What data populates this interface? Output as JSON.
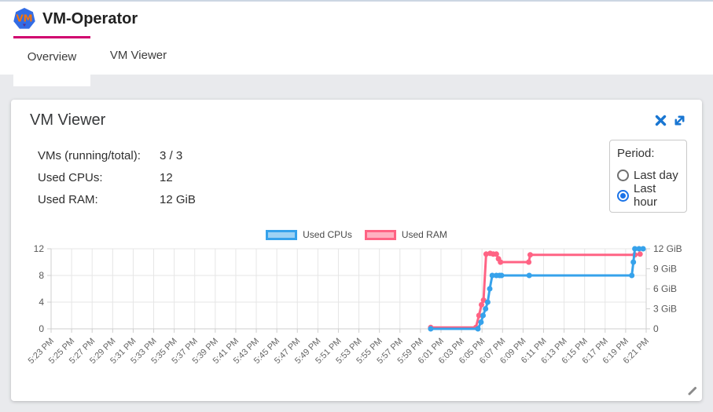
{
  "header": {
    "title": "VM-Operator",
    "logo_text": "VM"
  },
  "tabs": [
    {
      "label": "Overview",
      "active": true
    },
    {
      "label": "VM Viewer",
      "active": false
    }
  ],
  "card": {
    "title": "VM Viewer",
    "actions": [
      {
        "icon": "close-icon"
      },
      {
        "icon": "expand-icon"
      }
    ],
    "stats": [
      {
        "label": "VMs (running/total):",
        "value": "3 / 3"
      },
      {
        "label": "Used CPUs:",
        "value": "12"
      },
      {
        "label": "Used RAM:",
        "value": "12 GiB"
      }
    ],
    "period": {
      "label": "Period:",
      "options": [
        {
          "label": "Last day",
          "selected": false
        },
        {
          "label": "Last hour",
          "selected": true
        }
      ]
    }
  },
  "colors": {
    "tab_indicator": "#d0006e",
    "accent_blue": "#1a73e8",
    "icon_blue": "#1976d2",
    "logo_blue": "#326CE5",
    "logo_text_orange": "#f5740a",
    "cpu_line": "#36A2EB",
    "cpu_fill": "#9ED2F4",
    "ram_line": "#FF6384",
    "ram_fill": "#FFB1C1",
    "grid": "#e6e6e6",
    "axis_border": "#cfcfcf"
  },
  "chart_data": {
    "type": "line",
    "x_ticks": [
      "5:23 PM",
      "5:25 PM",
      "5:27 PM",
      "5:29 PM",
      "5:31 PM",
      "5:33 PM",
      "5:35 PM",
      "5:37 PM",
      "5:39 PM",
      "5:41 PM",
      "5:43 PM",
      "5:45 PM",
      "5:47 PM",
      "5:49 PM",
      "5:51 PM",
      "5:53 PM",
      "5:55 PM",
      "5:57 PM",
      "5:59 PM",
      "6:01 PM",
      "6:03 PM",
      "6:05 PM",
      "6:07 PM",
      "6:09 PM",
      "6:11 PM",
      "6:13 PM",
      "6:15 PM",
      "6:17 PM",
      "6:19 PM",
      "6:21 PM"
    ],
    "x_range_minutes": [
      0,
      58
    ],
    "left_axis": {
      "ticks": [
        0,
        4,
        8,
        12
      ],
      "range": [
        0,
        12
      ]
    },
    "right_axis": {
      "ticks": [
        0,
        3,
        6,
        9,
        12
      ],
      "tick_labels": [
        "0",
        "3 GiB",
        "6 GiB",
        "9 GiB",
        "12 GiB"
      ],
      "range": [
        0,
        12
      ]
    },
    "grid": true,
    "legend_position": "top-center",
    "legend": [
      {
        "name": "Used CPUs",
        "color": "#36A2EB",
        "fill": "#9ED2F4"
      },
      {
        "name": "Used RAM",
        "color": "#FF6384",
        "fill": "#FFB1C1"
      }
    ],
    "series": [
      {
        "name": "Used CPUs",
        "axis": "left",
        "color": "#36A2EB",
        "unit": "CPUs",
        "points": [
          [
            37.0,
            0
          ],
          [
            41.6,
            0
          ],
          [
            41.9,
            1
          ],
          [
            42.1,
            2
          ],
          [
            42.35,
            3
          ],
          [
            42.55,
            4
          ],
          [
            42.75,
            6
          ],
          [
            43.0,
            8
          ],
          [
            43.4,
            8
          ],
          [
            43.7,
            8
          ],
          [
            43.9,
            8
          ],
          [
            46.6,
            8
          ],
          [
            56.6,
            8
          ],
          [
            56.75,
            10
          ],
          [
            56.9,
            12
          ],
          [
            57.3,
            12
          ],
          [
            57.7,
            12
          ]
        ]
      },
      {
        "name": "Used RAM",
        "axis": "right",
        "color": "#FF6384",
        "unit": "GiB",
        "points": [
          [
            37.0,
            0.2
          ],
          [
            41.4,
            0.2
          ],
          [
            41.7,
            2.0
          ],
          [
            41.95,
            3.6
          ],
          [
            42.15,
            4.3
          ],
          [
            42.4,
            11.2
          ],
          [
            42.8,
            11.3
          ],
          [
            43.1,
            11.2
          ],
          [
            43.4,
            11.2
          ],
          [
            43.6,
            10.5
          ],
          [
            43.8,
            10.0
          ],
          [
            46.55,
            10.0
          ],
          [
            46.7,
            11.1
          ],
          [
            56.9,
            11.1
          ],
          [
            57.4,
            11.2
          ]
        ]
      }
    ]
  }
}
